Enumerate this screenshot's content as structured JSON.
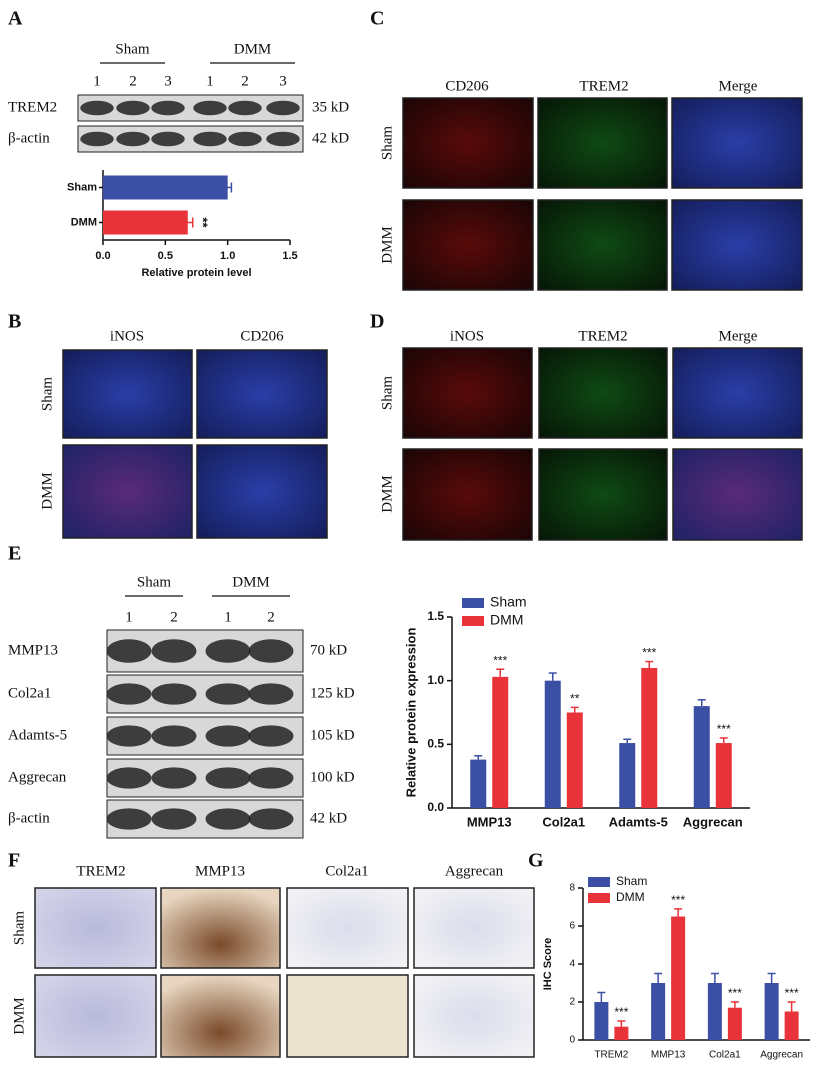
{
  "panel_labels": [
    "A",
    "B",
    "C",
    "D",
    "E",
    "F",
    "G"
  ],
  "blot_a": {
    "groups": [
      "Sham",
      "DMM"
    ],
    "lanes": [
      "1",
      "2",
      "3",
      "1",
      "2",
      "3"
    ],
    "proteins": [
      "TREM2",
      "β-actin"
    ],
    "sizes": [
      "35 kD",
      "42 kD"
    ]
  },
  "panel_b": {
    "columns": [
      "iNOS",
      "CD206"
    ],
    "rows": [
      "Sham",
      "DMM"
    ]
  },
  "panel_c": {
    "columns": [
      "CD206",
      "TREM2",
      "Merge"
    ],
    "rows": [
      "Sham",
      "DMM"
    ]
  },
  "panel_d": {
    "columns": [
      "iNOS",
      "TREM2",
      "Merge"
    ],
    "rows": [
      "Sham",
      "DMM"
    ]
  },
  "blot_e": {
    "groups": [
      "Sham",
      "DMM"
    ],
    "lanes": [
      "1",
      "2",
      "1",
      "2"
    ],
    "proteins": [
      "MMP13",
      "Col2a1",
      "Adamts-5",
      "Aggrecan",
      "β-actin"
    ],
    "sizes": [
      "70 kD",
      "125 kD",
      "105 kD",
      "100 kD",
      "42 kD"
    ]
  },
  "panel_f": {
    "columns": [
      "TREM2",
      "MMP13",
      "Col2a1",
      "Aggrecan"
    ],
    "rows": [
      "Sham",
      "DMM"
    ]
  },
  "chart_data": [
    {
      "type": "bar",
      "orientation": "horizontal",
      "categories": [
        "Sham",
        "DMM"
      ],
      "values": [
        1.0,
        0.68
      ],
      "errors": [
        0.03,
        0.04
      ],
      "colors": [
        "#3b4fa5",
        "#e8333a"
      ],
      "xlim": [
        0,
        1.5
      ],
      "xticks": [
        {
          "value": 0,
          "label": "0.0"
        },
        0.5,
        {
          "value": 1,
          "label": "1.0"
        },
        1.5
      ],
      "xlabel": "Relative protein level",
      "annotation": "**"
    },
    {
      "type": "bar",
      "categories": [
        "MMP13",
        "Col2a1",
        "Adamts-5",
        "Aggrecan"
      ],
      "series": [
        {
          "name": "Sham",
          "color": "#3b4fa5",
          "values": [
            0.38,
            1.0,
            0.51,
            0.8
          ],
          "errors": [
            0.03,
            0.06,
            0.03,
            0.05
          ]
        },
        {
          "name": "DMM",
          "color": "#e8333a",
          "values": [
            1.03,
            0.75,
            1.1,
            0.51
          ],
          "errors": [
            0.06,
            0.04,
            0.05,
            0.04
          ],
          "significance": [
            "***",
            "**",
            "***",
            "***"
          ]
        }
      ],
      "ylim": [
        0,
        1.5
      ],
      "yticks": [
        {
          "value": 0,
          "label": "0.0"
        },
        0.5,
        {
          "value": 1,
          "label": "1.0"
        },
        1.5
      ],
      "ylabel": "Relative protein expression"
    },
    {
      "type": "bar",
      "categories": [
        "TREM2",
        "MMP13",
        "Col2a1",
        "Aggrecan"
      ],
      "series": [
        {
          "name": "Sham",
          "color": "#3b4fa5",
          "values": [
            2.0,
            3.0,
            3.0,
            3.0
          ],
          "errors": [
            0.5,
            0.5,
            0.5,
            0.5
          ]
        },
        {
          "name": "DMM",
          "color": "#e8333a",
          "values": [
            0.7,
            6.5,
            1.7,
            1.5
          ],
          "errors": [
            0.3,
            0.4,
            0.3,
            0.5
          ],
          "significance": [
            "***",
            "***",
            "***",
            "***"
          ]
        }
      ],
      "ylim": [
        0,
        8
      ],
      "yticks": [
        0,
        2,
        4,
        6,
        8
      ],
      "ylabel": "IHC Score"
    }
  ]
}
